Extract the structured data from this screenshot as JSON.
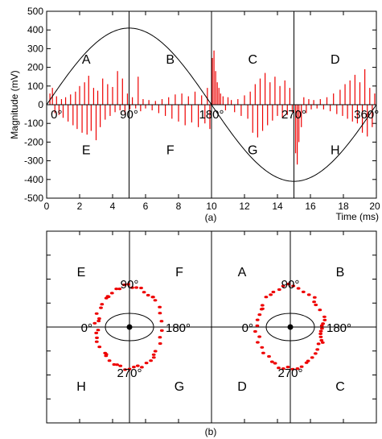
{
  "chart_data": [
    {
      "panel": "(a)",
      "type": "line",
      "ylabel": "Magnitude  (mV)",
      "xlabel": "Time  (ms)",
      "xlim": [
        0,
        20
      ],
      "ylim": [
        -500,
        500
      ],
      "xticks": [
        "0",
        "2",
        "4",
        "6",
        "8",
        "10",
        "12",
        "14",
        "16",
        "18",
        "20"
      ],
      "yticks": [
        "500",
        "400",
        "300",
        "200",
        "100",
        "0",
        "-100",
        "-200",
        "-300",
        "-400",
        "-500"
      ],
      "reference_sine": {
        "amplitude_mv": 410,
        "period_ms": 20
      },
      "vertical_lines_ms": [
        5,
        10,
        15
      ],
      "phase_labels": [
        {
          "text": "0°",
          "x": 0.6
        },
        {
          "text": "90°",
          "x": 5.0
        },
        {
          "text": "180°",
          "x": 10.0
        },
        {
          "text": "270°",
          "x": 15.0
        },
        {
          "text": "360°",
          "x": 19.4
        }
      ],
      "regions": [
        {
          "label": "A",
          "x": 2.4,
          "y": 245
        },
        {
          "label": "B",
          "x": 7.5,
          "y": 245
        },
        {
          "label": "C",
          "x": 12.5,
          "y": 245
        },
        {
          "label": "D",
          "x": 17.5,
          "y": 245
        },
        {
          "label": "E",
          "x": 2.4,
          "y": -240
        },
        {
          "label": "F",
          "x": 7.5,
          "y": -240
        },
        {
          "label": "G",
          "x": 12.5,
          "y": -240
        },
        {
          "label": "H",
          "x": 17.5,
          "y": -240
        }
      ],
      "pulse_color": "#ee0000",
      "pulses": [
        [
          0.2,
          60
        ],
        [
          0.35,
          90
        ],
        [
          0.5,
          -45
        ],
        [
          0.6,
          45
        ],
        [
          0.75,
          -55
        ],
        [
          0.9,
          30
        ],
        [
          1.0,
          -70
        ],
        [
          1.15,
          40
        ],
        [
          1.3,
          -90
        ],
        [
          1.45,
          55
        ],
        [
          1.6,
          -110
        ],
        [
          1.75,
          70
        ],
        [
          1.85,
          -130
        ],
        [
          2.0,
          100
        ],
        [
          2.15,
          -150
        ],
        [
          2.3,
          120
        ],
        [
          2.45,
          -160
        ],
        [
          2.55,
          155
        ],
        [
          2.7,
          -140
        ],
        [
          2.85,
          90
        ],
        [
          3.0,
          -190
        ],
        [
          3.1,
          75
        ],
        [
          3.25,
          -120
        ],
        [
          3.4,
          140
        ],
        [
          3.55,
          -80
        ],
        [
          3.7,
          110
        ],
        [
          3.85,
          -60
        ],
        [
          4.0,
          95
        ],
        [
          4.15,
          -40
        ],
        [
          4.3,
          180
        ],
        [
          4.45,
          -30
        ],
        [
          4.6,
          140
        ],
        [
          4.75,
          -50
        ],
        [
          4.9,
          60
        ],
        [
          5.05,
          -25
        ],
        [
          5.2,
          40
        ],
        [
          5.4,
          -20
        ],
        [
          5.55,
          150
        ],
        [
          5.7,
          -35
        ],
        [
          5.85,
          30
        ],
        [
          6.0,
          -20
        ],
        [
          6.2,
          25
        ],
        [
          6.4,
          -30
        ],
        [
          6.6,
          20
        ],
        [
          6.8,
          -45
        ],
        [
          7.0,
          30
        ],
        [
          7.2,
          -60
        ],
        [
          7.4,
          40
        ],
        [
          7.6,
          -75
        ],
        [
          7.8,
          55
        ],
        [
          8.0,
          -90
        ],
        [
          8.2,
          60
        ],
        [
          8.4,
          -110
        ],
        [
          8.6,
          45
        ],
        [
          8.8,
          -95
        ],
        [
          9.0,
          70
        ],
        [
          9.2,
          -120
        ],
        [
          9.4,
          50
        ],
        [
          9.6,
          -100
        ],
        [
          9.75,
          90
        ],
        [
          9.9,
          -130
        ],
        [
          10.05,
          250
        ],
        [
          10.15,
          290
        ],
        [
          10.25,
          180
        ],
        [
          10.35,
          120
        ],
        [
          10.45,
          90
        ],
        [
          10.55,
          60
        ],
        [
          10.7,
          45
        ],
        [
          10.85,
          -30
        ],
        [
          11.0,
          40
        ],
        [
          11.2,
          25
        ],
        [
          11.4,
          -40
        ],
        [
          11.6,
          30
        ],
        [
          11.8,
          -60
        ],
        [
          12.0,
          50
        ],
        [
          12.2,
          -75
        ],
        [
          12.35,
          70
        ],
        [
          12.5,
          -150
        ],
        [
          12.65,
          110
        ],
        [
          12.8,
          -175
        ],
        [
          12.95,
          140
        ],
        [
          13.1,
          -140
        ],
        [
          13.25,
          170
        ],
        [
          13.4,
          -110
        ],
        [
          13.55,
          120
        ],
        [
          13.7,
          -85
        ],
        [
          13.85,
          150
        ],
        [
          14.0,
          -60
        ],
        [
          14.15,
          100
        ],
        [
          14.3,
          -70
        ],
        [
          14.45,
          130
        ],
        [
          14.6,
          -55
        ],
        [
          14.75,
          90
        ],
        [
          14.9,
          -40
        ],
        [
          15.1,
          -260
        ],
        [
          15.2,
          -320
        ],
        [
          15.3,
          -200
        ],
        [
          15.45,
          -120
        ],
        [
          15.6,
          40
        ],
        [
          15.75,
          -45
        ],
        [
          15.9,
          30
        ],
        [
          16.05,
          -25
        ],
        [
          16.2,
          25
        ],
        [
          16.4,
          -20
        ],
        [
          16.6,
          30
        ],
        [
          16.8,
          -25
        ],
        [
          17.0,
          40
        ],
        [
          17.2,
          -35
        ],
        [
          17.4,
          60
        ],
        [
          17.6,
          -50
        ],
        [
          17.8,
          80
        ],
        [
          17.95,
          -60
        ],
        [
          18.1,
          110
        ],
        [
          18.25,
          -75
        ],
        [
          18.4,
          130
        ],
        [
          18.55,
          -90
        ],
        [
          18.7,
          160
        ],
        [
          18.85,
          -100
        ],
        [
          19.0,
          120
        ],
        [
          19.15,
          -150
        ],
        [
          19.3,
          190
        ],
        [
          19.45,
          -170
        ],
        [
          19.6,
          90
        ],
        [
          19.75,
          -120
        ],
        [
          19.9,
          60
        ]
      ]
    },
    {
      "panel": "(b)",
      "type": "scatter",
      "left_view": {
        "regions": {
          "top_left": "E",
          "top_right": "F",
          "bottom_left": "H",
          "bottom_right": "G"
        },
        "angles": {
          "top": "90°",
          "left": "0°",
          "right": "180°",
          "bottom": "270°"
        }
      },
      "right_view": {
        "regions": {
          "top_left": "A",
          "top_right": "B",
          "bottom_left": "D",
          "bottom_right": "C"
        },
        "angles": {
          "top": "90°",
          "left": "0°",
          "right": "180°",
          "bottom": "270°"
        }
      },
      "point_color": "#ee0000",
      "left_points_angles_deg": [
        5,
        12,
        20,
        28,
        35,
        42,
        50,
        58,
        65,
        72,
        80,
        88,
        95,
        102,
        110,
        118,
        125,
        132,
        140,
        150,
        160,
        172,
        185,
        195,
        205,
        215,
        225,
        232,
        240,
        248,
        255,
        262,
        270,
        278,
        285,
        292,
        300,
        308,
        315,
        322,
        330,
        338,
        345,
        352,
        356,
        8,
        45,
        135,
        225,
        315
      ],
      "right_points_angles_deg": [
        2,
        10,
        18,
        26,
        34,
        44,
        52,
        60,
        70,
        78,
        86,
        95,
        105,
        115,
        125,
        135,
        145,
        155,
        165,
        175,
        182,
        190,
        198,
        205,
        212,
        220,
        228,
        235,
        242,
        250,
        258,
        266,
        274,
        282,
        290,
        298,
        306,
        314,
        322,
        330,
        338,
        346,
        354,
        170,
        178,
        186,
        194,
        202,
        25,
        140
      ]
    }
  ],
  "captions": {
    "a": "(a)",
    "b": "(b)"
  }
}
